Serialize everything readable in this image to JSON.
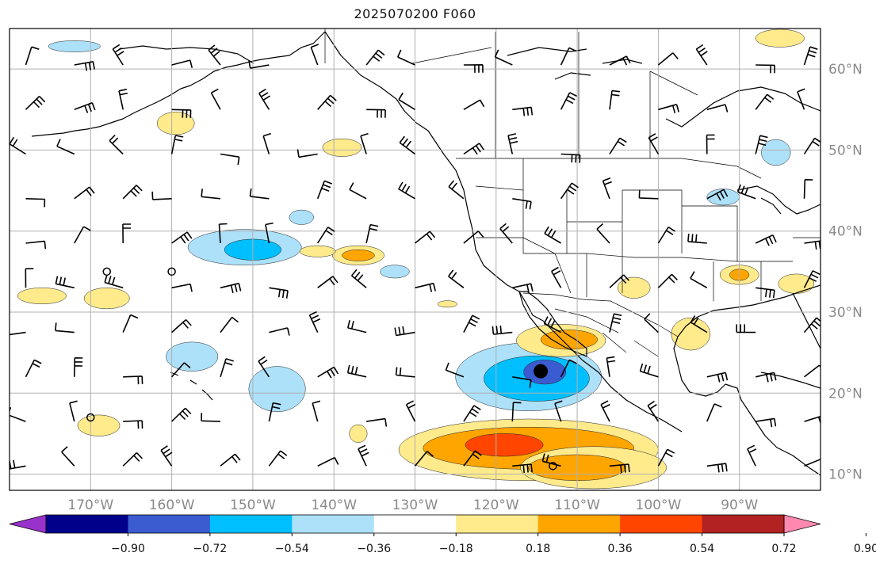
{
  "title": "2025070200 F060",
  "map": {
    "projection": "equirectangular",
    "extent": {
      "lon_min": -180,
      "lon_max": -80,
      "lat_min": 8,
      "lat_max": 65
    },
    "gridlines": true,
    "lon_ticks": [
      {
        "lon": -170,
        "label": "170°W"
      },
      {
        "lon": -160,
        "label": "160°W"
      },
      {
        "lon": -150,
        "label": "150°W"
      },
      {
        "lon": -140,
        "label": "140°W"
      },
      {
        "lon": -130,
        "label": "130°W"
      },
      {
        "lon": -120,
        "label": "120°W"
      },
      {
        "lon": -110,
        "label": "110°W"
      },
      {
        "lon": -100,
        "label": "100°W"
      },
      {
        "lon": -90,
        "label": "90°W"
      }
    ],
    "lat_ticks": [
      {
        "lat": 60,
        "label": "60°N"
      },
      {
        "lat": 50,
        "label": "50°N"
      },
      {
        "lat": 40,
        "label": "40°N"
      },
      {
        "lat": 30,
        "label": "30°N"
      },
      {
        "lat": 20,
        "label": "20°N"
      },
      {
        "lat": 10,
        "label": "10°N"
      }
    ],
    "contours": [
      {
        "lon": -116,
        "lat": 22,
        "rx": 9,
        "ry": 4.2,
        "color": "#ade1fa"
      },
      {
        "lon": -115,
        "lat": 21.8,
        "rx": 6.5,
        "ry": 2.8,
        "color": "#00bfff"
      },
      {
        "lon": -114,
        "lat": 22.6,
        "rx": 2.6,
        "ry": 1.5,
        "color": "#3b5bd0"
      },
      {
        "lon": -116,
        "lat": 13,
        "rx": 16,
        "ry": 3.8,
        "color": "#ffea8c"
      },
      {
        "lon": -116,
        "lat": 13.2,
        "rx": 13,
        "ry": 2.6,
        "color": "#ffa500"
      },
      {
        "lon": -119,
        "lat": 13.6,
        "rx": 4.8,
        "ry": 1.4,
        "color": "#ff4500"
      },
      {
        "lon": -108,
        "lat": 10.8,
        "rx": 9,
        "ry": 2.6,
        "color": "#ffea8c"
      },
      {
        "lon": -110,
        "lat": 10.8,
        "rx": 6,
        "ry": 1.6,
        "color": "#ffa500"
      },
      {
        "lon": -112,
        "lat": 26.5,
        "rx": 5.5,
        "ry": 2,
        "color": "#ffea8c"
      },
      {
        "lon": -111,
        "lat": 26.6,
        "rx": 3.5,
        "ry": 1.2,
        "color": "#ffa500"
      },
      {
        "lon": -151,
        "lat": 38,
        "rx": 7,
        "ry": 2.2,
        "color": "#ade1fa"
      },
      {
        "lon": -150,
        "lat": 37.7,
        "rx": 3.5,
        "ry": 1.3,
        "color": "#00bfff"
      },
      {
        "lon": -159.5,
        "lat": 53.3,
        "rx": 2.3,
        "ry": 1.4,
        "color": "#ffea8c"
      },
      {
        "lon": -139,
        "lat": 50.3,
        "rx": 2.4,
        "ry": 1.1,
        "color": "#ffea8c"
      },
      {
        "lon": -144,
        "lat": 41.7,
        "rx": 1.5,
        "ry": 0.9,
        "color": "#ade1fa"
      },
      {
        "lon": -137,
        "lat": 37,
        "rx": 3.2,
        "ry": 1.2,
        "color": "#ffea8c"
      },
      {
        "lon": -137,
        "lat": 37,
        "rx": 2,
        "ry": 0.7,
        "color": "#ffa500"
      },
      {
        "lon": -142,
        "lat": 37.5,
        "rx": 2.2,
        "ry": 0.7,
        "color": "#ffea8c"
      },
      {
        "lon": -132.5,
        "lat": 35,
        "rx": 1.8,
        "ry": 0.8,
        "color": "#ade1fa"
      },
      {
        "lon": -168,
        "lat": 31.7,
        "rx": 2.8,
        "ry": 1.3,
        "color": "#ffea8c"
      },
      {
        "lon": -176,
        "lat": 32,
        "rx": 3,
        "ry": 1,
        "color": "#ffea8c"
      },
      {
        "lon": -157.5,
        "lat": 24.5,
        "rx": 3.2,
        "ry": 1.8,
        "color": "#ade1fa"
      },
      {
        "lon": -147,
        "lat": 20.5,
        "rx": 3.5,
        "ry": 2.8,
        "color": "#ade1fa"
      },
      {
        "lon": -169,
        "lat": 16,
        "rx": 2.6,
        "ry": 1.3,
        "color": "#ffea8c"
      },
      {
        "lon": -137,
        "lat": 15,
        "rx": 1.1,
        "ry": 1.1,
        "color": "#ffea8c"
      },
      {
        "lon": -103,
        "lat": 33,
        "rx": 2,
        "ry": 1.3,
        "color": "#ffea8c"
      },
      {
        "lon": -96,
        "lat": 27.3,
        "rx": 2.4,
        "ry": 2,
        "color": "#ffea8c"
      },
      {
        "lon": -90,
        "lat": 34.6,
        "rx": 2.4,
        "ry": 1.2,
        "color": "#ffea8c"
      },
      {
        "lon": -90,
        "lat": 34.6,
        "rx": 1.2,
        "ry": 0.7,
        "color": "#ffa500"
      },
      {
        "lon": -83,
        "lat": 33.5,
        "rx": 2.2,
        "ry": 1.2,
        "color": "#ffea8c"
      },
      {
        "lon": -85.5,
        "lat": 49.7,
        "rx": 1.8,
        "ry": 1.6,
        "color": "#ade1fa"
      },
      {
        "lon": -92,
        "lat": 44.2,
        "rx": 2,
        "ry": 1,
        "color": "#ade1fa"
      },
      {
        "lon": -85,
        "lat": 63.8,
        "rx": 3,
        "ry": 1.1,
        "color": "#ffea8c"
      },
      {
        "lon": -172,
        "lat": 62.8,
        "rx": 3.2,
        "ry": 0.7,
        "color": "#ade1fa"
      },
      {
        "lon": -126,
        "lat": 31,
        "rx": 1.2,
        "ry": 0.4,
        "color": "#ffea8c"
      }
    ],
    "dots": [
      {
        "lon": -114.5,
        "lat": 22.7
      }
    ],
    "open_circles": [
      {
        "lon": -168,
        "lat": 35
      },
      {
        "lon": -160,
        "lat": 35
      },
      {
        "lon": -170,
        "lat": 17
      },
      {
        "lon": -113,
        "lat": 11
      }
    ],
    "barb_grid": {
      "lon_start": -178,
      "lon_step": 6,
      "lat_start": 11,
      "lat_step": 5.5,
      "rows": 10,
      "cols": 17
    }
  },
  "colorbar": {
    "colors": [
      "#9932cc",
      "#00008b",
      "#3b5bd0",
      "#00bfff",
      "#ade1fa",
      "#ffffff",
      "#ffea8c",
      "#ffa500",
      "#ff4500",
      "#b22222",
      "#ff88b0"
    ],
    "tick_labels": [
      "−0.90",
      "−0.72",
      "−0.54",
      "−0.36",
      "−0.18",
      "0.18",
      "0.36",
      "0.54",
      "0.72",
      "0.90"
    ],
    "extend": "both"
  }
}
